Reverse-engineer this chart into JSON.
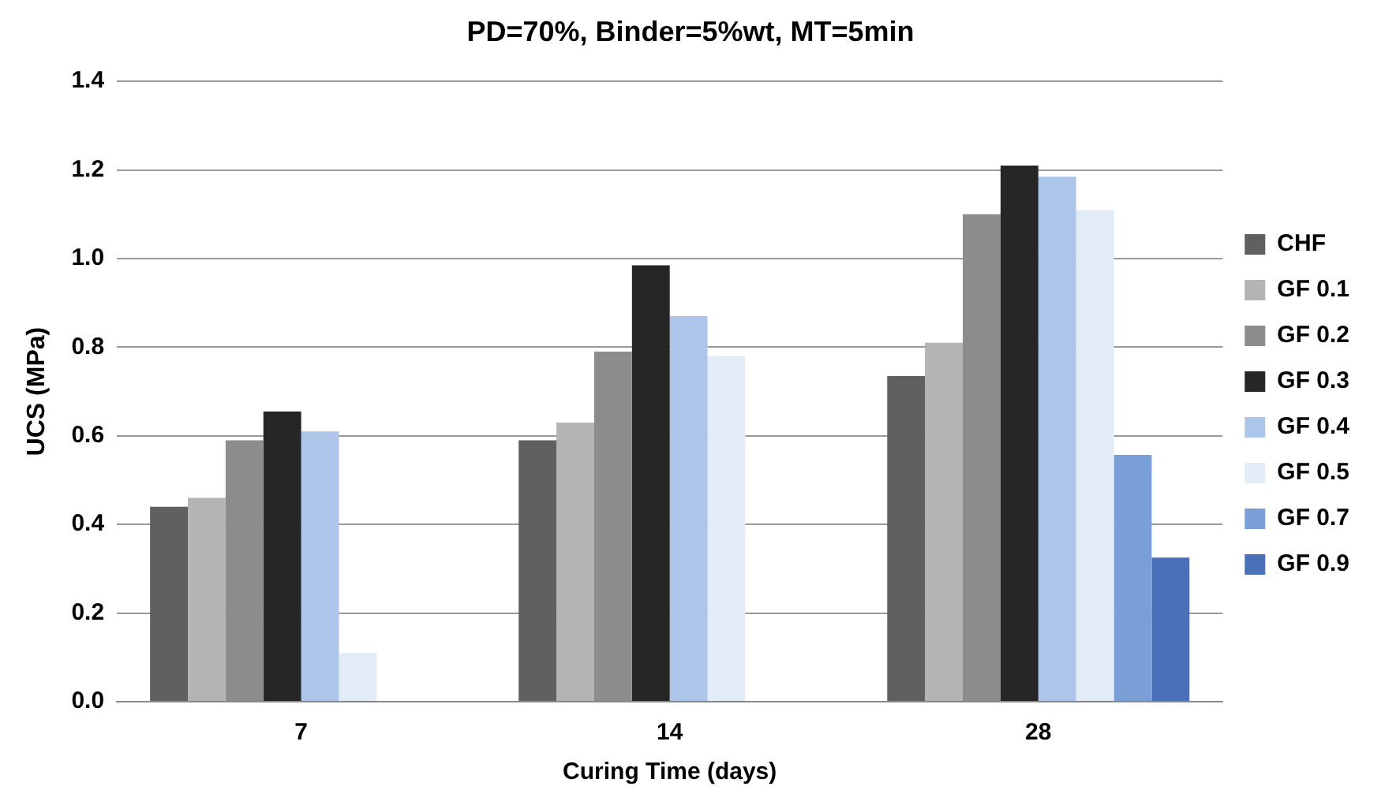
{
  "chart_data": {
    "type": "bar",
    "title": "PD=70%, Binder=5%wt, MT=5min",
    "xlabel": "Curing Time (days)",
    "ylabel": "UCS (MPa)",
    "categories": [
      "7",
      "14",
      "28"
    ],
    "series": [
      {
        "name": "CHF",
        "color": "#606060",
        "values": [
          0.44,
          0.59,
          0.735
        ]
      },
      {
        "name": "GF 0.1",
        "color": "#b4b4b4",
        "values": [
          0.46,
          0.63,
          0.81
        ]
      },
      {
        "name": "GF 0.2",
        "color": "#8c8c8c",
        "values": [
          0.59,
          0.79,
          1.1
        ]
      },
      {
        "name": "GF 0.3",
        "color": "#262626",
        "values": [
          0.655,
          0.985,
          1.21
        ]
      },
      {
        "name": "GF 0.4",
        "color": "#adc5e8",
        "values": [
          0.61,
          0.87,
          1.185
        ]
      },
      {
        "name": "GF 0.5",
        "color": "#e3ebf7",
        "values": [
          0.11,
          0.78,
          1.11
        ]
      },
      {
        "name": "GF 0.7",
        "color": "#7a9fd6",
        "values": [
          null,
          null,
          0.557
        ]
      },
      {
        "name": "GF 0.9",
        "color": "#4a70b8",
        "values": [
          null,
          null,
          0.325
        ]
      }
    ],
    "ylim": [
      0,
      1.4
    ],
    "yticks": [
      {
        "value": 0,
        "label": "0.0"
      },
      {
        "value": 0.2,
        "label": "0.2"
      },
      {
        "value": 0.4,
        "label": "0.4"
      },
      {
        "value": 0.6,
        "label": "0.6"
      },
      {
        "value": 0.8,
        "label": "0.8"
      },
      {
        "value": 1,
        "label": "1.0"
      },
      {
        "value": 1.2,
        "label": "1.2"
      },
      {
        "value": 1.4,
        "label": "1.4"
      }
    ],
    "grid": "y",
    "legend": "right"
  }
}
